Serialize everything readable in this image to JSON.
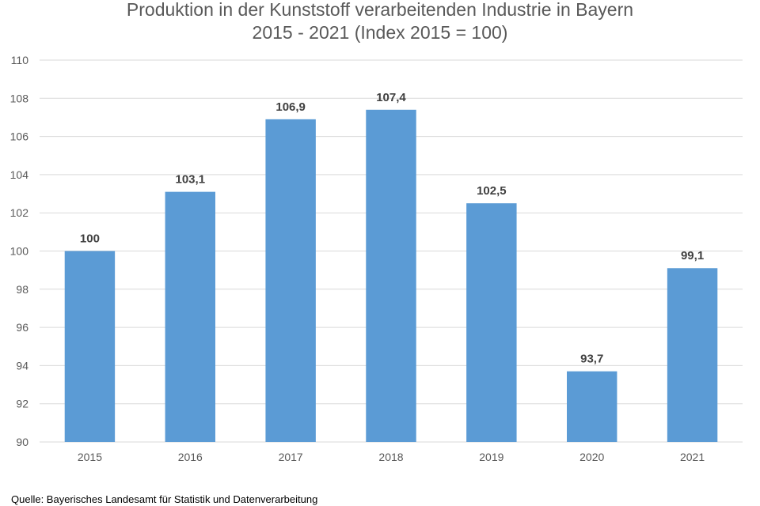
{
  "chart_data": {
    "type": "bar",
    "title_lines": [
      "Produktion in der Kunststoff verarbeitenden Industrie in Bayern",
      "2015 - 2021 (Index 2015 = 100)"
    ],
    "categories": [
      "2015",
      "2016",
      "2017",
      "2018",
      "2019",
      "2020",
      "2021"
    ],
    "values": [
      100,
      103.1,
      106.9,
      107.4,
      102.5,
      93.7,
      99.1
    ],
    "value_labels": [
      "100",
      "103,1",
      "106,9",
      "107,4",
      "102,5",
      "93,7",
      "99,1"
    ],
    "ylim": [
      90,
      110
    ],
    "yticks": [
      90,
      92,
      94,
      96,
      98,
      100,
      102,
      104,
      106,
      108,
      110
    ],
    "grid": true,
    "bar_color": "#5b9bd5"
  },
  "source": "Quelle:  Bayerisches Landesamt für Statistik und Datenverarbeitung"
}
